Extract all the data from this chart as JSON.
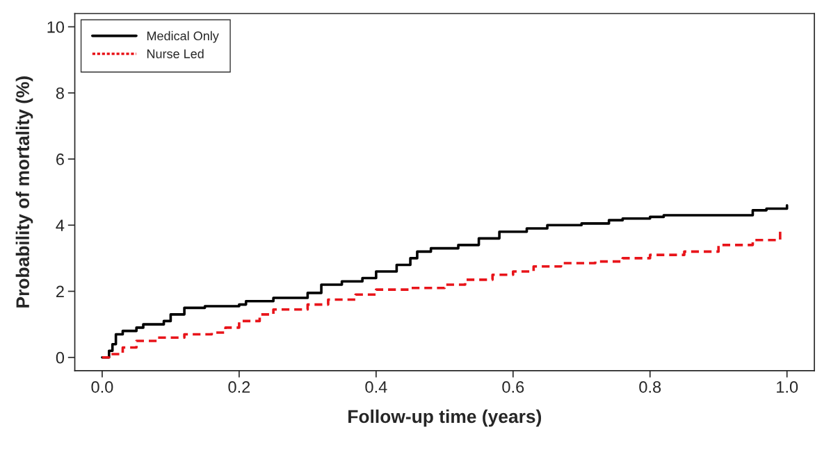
{
  "chart_data": {
    "type": "step",
    "xlabel": "Follow-up time (years)",
    "ylabel": "Probability of mortality (%)",
    "xlim": [
      -0.04,
      1.04
    ],
    "ylim": [
      -0.4,
      10.4
    ],
    "xticks": [
      {
        "value": 0,
        "label": "0.0"
      },
      0.2,
      0.4,
      0.6,
      0.8,
      {
        "value": 1,
        "label": "1.0"
      }
    ],
    "yticks": [
      0,
      2,
      4,
      6,
      8,
      10
    ],
    "grid": false,
    "legend": "top left",
    "series": [
      {
        "name": "Medical Only",
        "color": "#000000",
        "line_style": "solid",
        "x": [
          0,
          0.01,
          0.015,
          0.02,
          0.03,
          0.05,
          0.06,
          0.09,
          0.1,
          0.12,
          0.15,
          0.2,
          0.21,
          0.25,
          0.3,
          0.32,
          0.35,
          0.38,
          0.4,
          0.43,
          0.45,
          0.46,
          0.48,
          0.52,
          0.55,
          0.58,
          0.62,
          0.65,
          0.7,
          0.74,
          0.76,
          0.8,
          0.82,
          0.94,
          0.95,
          0.97,
          1.0
        ],
        "values": [
          0,
          0.2,
          0.4,
          0.7,
          0.8,
          0.9,
          1.0,
          1.1,
          1.3,
          1.5,
          1.55,
          1.6,
          1.7,
          1.8,
          1.95,
          2.2,
          2.3,
          2.4,
          2.6,
          2.8,
          3.0,
          3.2,
          3.3,
          3.4,
          3.6,
          3.8,
          3.9,
          4.0,
          4.05,
          4.15,
          4.2,
          4.25,
          4.3,
          4.3,
          4.45,
          4.5,
          4.6
        ]
      },
      {
        "name": "Nurse Led",
        "color": "#e8141a",
        "line_style": "dashed",
        "x": [
          0,
          0.01,
          0.03,
          0.05,
          0.08,
          0.12,
          0.16,
          0.18,
          0.2,
          0.23,
          0.25,
          0.3,
          0.33,
          0.37,
          0.4,
          0.45,
          0.5,
          0.53,
          0.57,
          0.6,
          0.63,
          0.67,
          0.72,
          0.76,
          0.8,
          0.85,
          0.9,
          0.95,
          0.99
        ],
        "values": [
          0,
          0.1,
          0.3,
          0.5,
          0.6,
          0.7,
          0.75,
          0.9,
          1.1,
          1.3,
          1.45,
          1.6,
          1.75,
          1.9,
          2.05,
          2.1,
          2.2,
          2.35,
          2.5,
          2.6,
          2.75,
          2.85,
          2.9,
          3.0,
          3.1,
          3.2,
          3.4,
          3.55,
          3.8
        ]
      }
    ]
  }
}
